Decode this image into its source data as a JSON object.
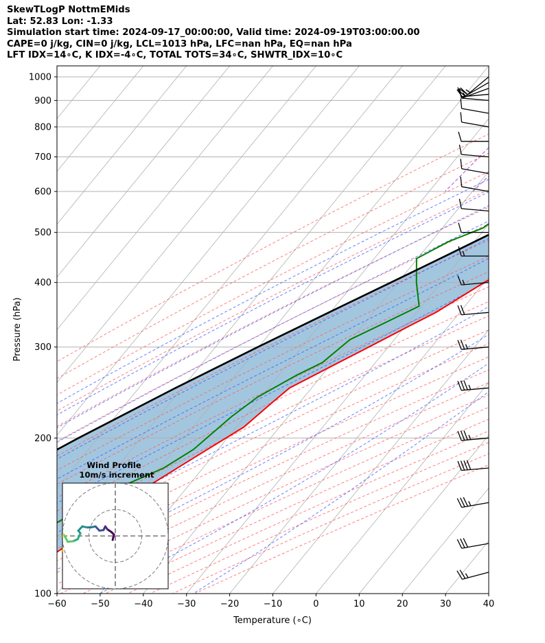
{
  "title_lines": [
    "SkewTLogP NottmEMids",
    "Lat: 52.83   Lon: -1.33",
    "Simulation start time: 2024-09-17_00:00:00, Valid time: 2024-09-19T03:00:00.00",
    "CAPE=0 j/kg, CIN=0 j/kg, LCL=1013 hPa, LFC=nan hPa, EQ=nan hPa",
    "LFT IDX=14∘C, K IDX=-4∘C, TOTAL TOTS=34∘C, SHWTR_IDX=10∘C"
  ],
  "chart_data": {
    "type": "skewt",
    "xlabel": "Temperature (∘C)",
    "ylabel": "Pressure (hPa)",
    "xlim": [
      -60,
      40
    ],
    "ylim": [
      1050,
      100
    ],
    "x_ticks": [
      -60,
      -50,
      -40,
      -30,
      -20,
      -10,
      0,
      10,
      20,
      30,
      40
    ],
    "x_tick_labels": [
      "−60",
      "−50",
      "−40",
      "−30",
      "−20",
      "−10",
      "0",
      "10",
      "20",
      "30",
      "40"
    ],
    "y_ticks": [
      1000,
      900,
      800,
      700,
      600,
      500,
      400,
      300,
      200,
      100
    ],
    "y_tick_labels": [
      "1000",
      "900",
      "800",
      "700",
      "600",
      "500",
      "400",
      "300",
      "200",
      "100"
    ],
    "colors": {
      "temperature": "#ff0000",
      "dewpoint": "#008000",
      "parcel": "#000000",
      "shade": "#a3c6df",
      "isotherm": "#b0b0b0",
      "dry_adiabat": "#ff5555",
      "moist_adiabat": "#3355ff",
      "mixing_ratio": "#9933cc"
    },
    "temperature_profile": [
      {
        "p": 1013,
        "t": 12.2
      },
      {
        "p": 1000,
        "t": 12.5
      },
      {
        "p": 980,
        "t": 14.0
      },
      {
        "p": 960,
        "t": 16.5
      },
      {
        "p": 940,
        "t": 17.8
      },
      {
        "p": 925,
        "t": 17.8
      },
      {
        "p": 900,
        "t": 16.0
      },
      {
        "p": 875,
        "t": 13.9
      },
      {
        "p": 850,
        "t": 12.3
      },
      {
        "p": 825,
        "t": 11.2
      },
      {
        "p": 800,
        "t": 10.2
      },
      {
        "p": 760,
        "t": 9.0
      },
      {
        "p": 700,
        "t": 6.5
      },
      {
        "p": 650,
        "t": 3.5
      },
      {
        "p": 600,
        "t": 0.0
      },
      {
        "p": 550,
        "t": -3.9
      },
      {
        "p": 500,
        "t": -8.2
      },
      {
        "p": 450,
        "t": -13.6
      },
      {
        "p": 400,
        "t": -20.0
      },
      {
        "p": 350,
        "t": -25.5
      },
      {
        "p": 330,
        "t": -29.0
      },
      {
        "p": 300,
        "t": -34.5
      },
      {
        "p": 250,
        "t": -45.1
      },
      {
        "p": 235,
        "t": -46.3
      },
      {
        "p": 210,
        "t": -48.3
      },
      {
        "p": 185,
        "t": -53.6
      },
      {
        "p": 160,
        "t": -59.6
      },
      {
        "p": 145,
        "t": -61.9
      },
      {
        "p": 130,
        "t": -65.1
      },
      {
        "p": 115,
        "t": -69.5
      },
      {
        "p": 100,
        "t": -73.5
      }
    ],
    "dewpoint_profile": [
      {
        "p": 1013,
        "t": 11.0
      },
      {
        "p": 1000,
        "t": 11.5
      },
      {
        "p": 980,
        "t": 12.7
      },
      {
        "p": 960,
        "t": 11.9
      },
      {
        "p": 925,
        "t": 5.0
      },
      {
        "p": 890,
        "t": 3.3
      },
      {
        "p": 860,
        "t": 2.3
      },
      {
        "p": 830,
        "t": -3.2
      },
      {
        "p": 800,
        "t": -10.8
      },
      {
        "p": 760,
        "t": -16.5
      },
      {
        "p": 720,
        "t": -22.4
      },
      {
        "p": 700,
        "t": -25.0
      },
      {
        "p": 650,
        "t": -26.3
      },
      {
        "p": 600,
        "t": -27.7
      },
      {
        "p": 550,
        "t": -28.5
      },
      {
        "p": 510,
        "t": -30.6
      },
      {
        "p": 480,
        "t": -36.0
      },
      {
        "p": 445,
        "t": -40.2
      },
      {
        "p": 400,
        "t": -35.7
      },
      {
        "p": 360,
        "t": -30.6
      },
      {
        "p": 335,
        "t": -35.2
      },
      {
        "p": 310,
        "t": -40.3
      },
      {
        "p": 280,
        "t": -42.3
      },
      {
        "p": 265,
        "t": -45.8
      },
      {
        "p": 240,
        "t": -50.8
      },
      {
        "p": 220,
        "t": -53.1
      },
      {
        "p": 190,
        "t": -55.7
      },
      {
        "p": 175,
        "t": -59.1
      },
      {
        "p": 160,
        "t": -65.9
      },
      {
        "p": 150,
        "t": -69.4
      },
      {
        "p": 130,
        "t": -75.9
      },
      {
        "p": 115,
        "t": -79.6
      },
      {
        "p": 100,
        "t": -83.5
      }
    ],
    "parcel_profile": [
      {
        "p": 1013,
        "t": 12.0
      },
      {
        "p": 1000,
        "t": 11.4
      },
      {
        "p": 950,
        "t": 8.7
      },
      {
        "p": 900,
        "t": 5.8
      },
      {
        "p": 850,
        "t": 2.8
      },
      {
        "p": 800,
        "t": -0.4
      },
      {
        "p": 750,
        "t": -3.8
      },
      {
        "p": 700,
        "t": -7.5
      },
      {
        "p": 650,
        "t": -11.7
      },
      {
        "p": 600,
        "t": -16.3
      },
      {
        "p": 550,
        "t": -21.5
      },
      {
        "p": 500,
        "t": -27.3
      },
      {
        "p": 450,
        "t": -34.0
      },
      {
        "p": 400,
        "t": -41.6
      },
      {
        "p": 350,
        "t": -50.3
      },
      {
        "p": 300,
        "t": -60.2
      },
      {
        "p": 250,
        "t": -71.5
      },
      {
        "p": 200,
        "t": -84.5
      },
      {
        "p": 150,
        "t": -100.0
      },
      {
        "p": 125,
        "t": -109.0
      },
      {
        "p": 100,
        "t": -119.0
      }
    ],
    "wind_barbs": [
      {
        "p": 1000,
        "speed_kt": 15,
        "dir": 230
      },
      {
        "p": 975,
        "speed_kt": 20,
        "dir": 240
      },
      {
        "p": 950,
        "speed_kt": 15,
        "dir": 250
      },
      {
        "p": 925,
        "speed_kt": 10,
        "dir": 265
      },
      {
        "p": 900,
        "speed_kt": 10,
        "dir": 275
      },
      {
        "p": 850,
        "speed_kt": 10,
        "dir": 280
      },
      {
        "p": 800,
        "speed_kt": 10,
        "dir": 280
      },
      {
        "p": 750,
        "speed_kt": 10,
        "dir": 270
      },
      {
        "p": 700,
        "speed_kt": 10,
        "dir": 275
      },
      {
        "p": 650,
        "speed_kt": 10,
        "dir": 280
      },
      {
        "p": 600,
        "speed_kt": 10,
        "dir": 280
      },
      {
        "p": 550,
        "speed_kt": 10,
        "dir": 275
      },
      {
        "p": 500,
        "speed_kt": 10,
        "dir": 270
      },
      {
        "p": 450,
        "speed_kt": 15,
        "dir": 270
      },
      {
        "p": 400,
        "speed_kt": 15,
        "dir": 265
      },
      {
        "p": 350,
        "speed_kt": 20,
        "dir": 265
      },
      {
        "p": 300,
        "speed_kt": 25,
        "dir": 265
      },
      {
        "p": 250,
        "speed_kt": 35,
        "dir": 265
      },
      {
        "p": 200,
        "speed_kt": 35,
        "dir": 265
      },
      {
        "p": 175,
        "speed_kt": 40,
        "dir": 265
      },
      {
        "p": 150,
        "speed_kt": 35,
        "dir": 260
      },
      {
        "p": 125,
        "speed_kt": 30,
        "dir": 260
      },
      {
        "p": 110,
        "speed_kt": 25,
        "dir": 255
      }
    ],
    "hodograph": {
      "title_line1": "Wind Profile",
      "title_line2": "10m/s increment",
      "ring_step_ms": 10,
      "points_ms": [
        [
          -1,
          -1.5
        ],
        [
          -0.5,
          0.5
        ],
        [
          -1.5,
          1.5
        ],
        [
          -3,
          2.5
        ],
        [
          -3.8,
          3.6
        ],
        [
          -4.5,
          2.2
        ],
        [
          -6,
          2.0
        ],
        [
          -7.5,
          3.6
        ],
        [
          -9,
          3.3
        ],
        [
          -10.5,
          3.2
        ],
        [
          -12.5,
          3.6
        ],
        [
          -14,
          2.0
        ],
        [
          -13.2,
          1.0
        ],
        [
          -14.2,
          -1.2
        ],
        [
          -16,
          -2.0
        ],
        [
          -18,
          -2.2
        ],
        [
          -19.5,
          0.5
        ],
        [
          -20.5,
          -0.5
        ],
        [
          -20.5,
          -2.6
        ],
        [
          -20.3,
          -4.8
        ],
        [
          -19.8,
          -5.6
        ]
      ]
    }
  }
}
